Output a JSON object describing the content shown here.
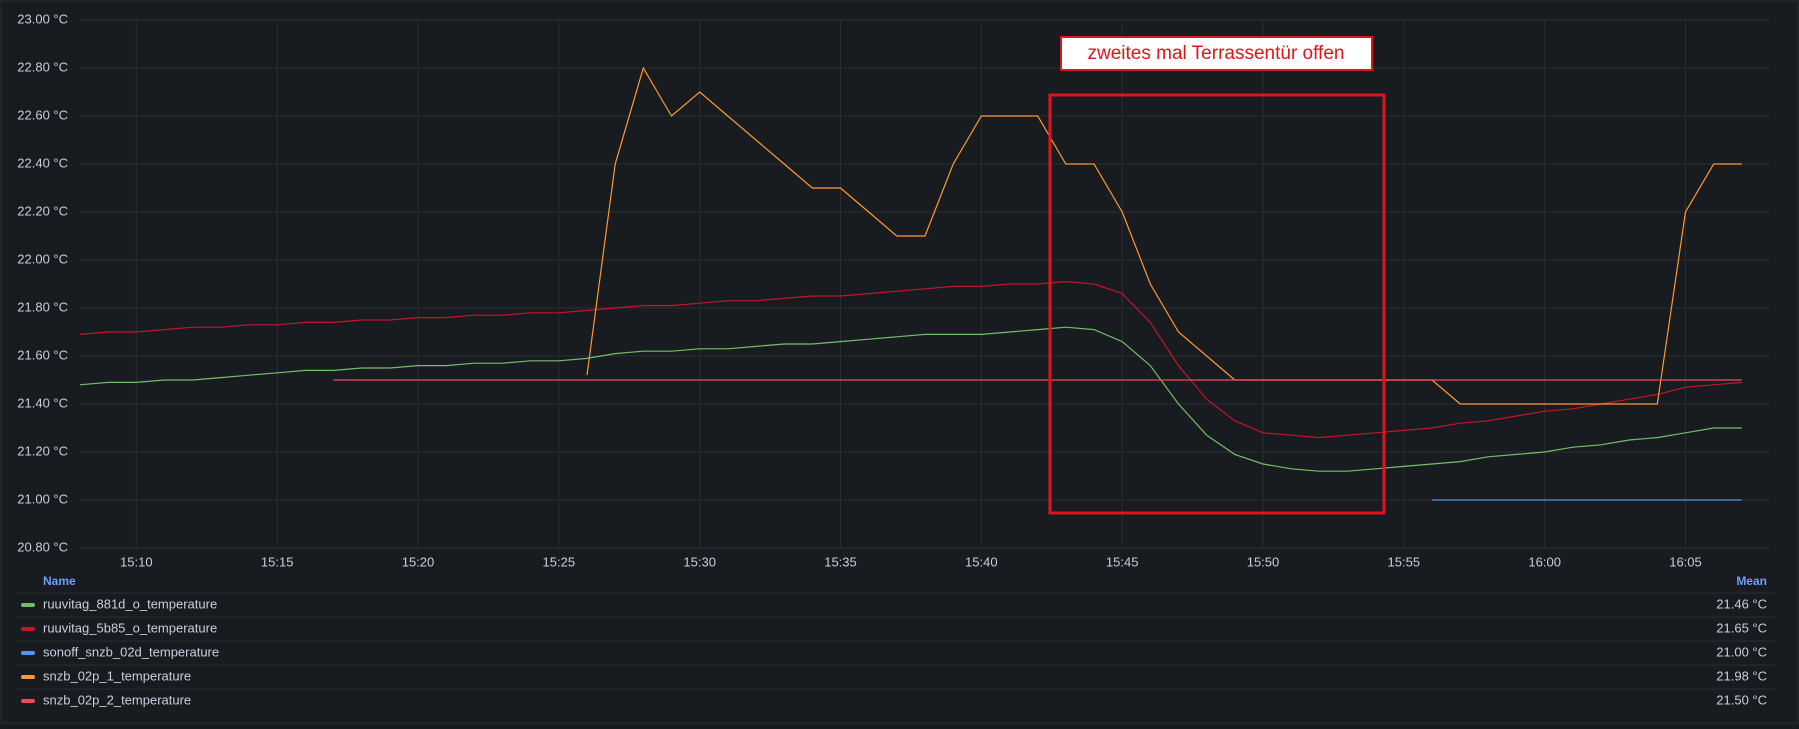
{
  "chart_data": {
    "type": "line",
    "annotation": "zweites mal Terrassentür offen",
    "x": [
      "15:08",
      "15:09",
      "15:10",
      "15:11",
      "15:12",
      "15:13",
      "15:14",
      "15:15",
      "15:16",
      "15:17",
      "15:18",
      "15:19",
      "15:20",
      "15:21",
      "15:22",
      "15:23",
      "15:24",
      "15:25",
      "15:26",
      "15:27",
      "15:28",
      "15:29",
      "15:30",
      "15:31",
      "15:32",
      "15:33",
      "15:34",
      "15:35",
      "15:36",
      "15:37",
      "15:38",
      "15:39",
      "15:40",
      "15:41",
      "15:42",
      "15:43",
      "15:44",
      "15:45",
      "15:46",
      "15:47",
      "15:48",
      "15:49",
      "15:50",
      "15:51",
      "15:52",
      "15:53",
      "15:54",
      "15:55",
      "15:56",
      "15:57",
      "15:58",
      "15:59",
      "16:00",
      "16:01",
      "16:02",
      "16:03",
      "16:04",
      "16:05",
      "16:06",
      "16:07"
    ],
    "xlim": [
      "15:08",
      "16:08"
    ],
    "xticks": [
      "15:10",
      "15:15",
      "15:20",
      "15:25",
      "15:30",
      "15:35",
      "15:40",
      "15:45",
      "15:50",
      "15:55",
      "16:00",
      "16:05"
    ],
    "ylim": [
      20.8,
      23.0
    ],
    "yticks": [
      {
        "value": 20.8,
        "label": "20.80 °C"
      },
      {
        "value": 21.0,
        "label": "21.00 °C"
      },
      {
        "value": 21.2,
        "label": "21.20 °C"
      },
      {
        "value": 21.4,
        "label": "21.40 °C"
      },
      {
        "value": 21.6,
        "label": "21.60 °C"
      },
      {
        "value": 21.8,
        "label": "21.80 °C"
      },
      {
        "value": 22.0,
        "label": "22.00 °C"
      },
      {
        "value": 22.2,
        "label": "22.20 °C"
      },
      {
        "value": 22.4,
        "label": "22.40 °C"
      },
      {
        "value": 22.6,
        "label": "22.60 °C"
      },
      {
        "value": 22.8,
        "label": "22.80 °C"
      },
      {
        "value": 23.0,
        "label": "23.00 °C"
      }
    ],
    "grid": true,
    "legend": {
      "name_header": "Name",
      "mean_header": "Mean"
    },
    "series": [
      {
        "name": "ruuvitag_881d_o_temperature",
        "color": "#73bf69",
        "mean": {
          "value": 21.46,
          "label": "21.46 °C"
        },
        "values": [
          21.48,
          21.49,
          21.49,
          21.5,
          21.5,
          21.51,
          21.52,
          21.53,
          21.54,
          21.54,
          21.55,
          21.55,
          21.56,
          21.56,
          21.57,
          21.57,
          21.58,
          21.58,
          21.59,
          21.61,
          21.62,
          21.62,
          21.63,
          21.63,
          21.64,
          21.65,
          21.65,
          21.66,
          21.67,
          21.68,
          21.69,
          21.69,
          21.69,
          21.7,
          21.71,
          21.72,
          21.71,
          21.66,
          21.56,
          21.4,
          21.27,
          21.19,
          21.15,
          21.13,
          21.12,
          21.12,
          21.13,
          21.14,
          21.15,
          21.16,
          21.18,
          21.19,
          21.2,
          21.22,
          21.23,
          21.25,
          21.26,
          21.28,
          21.3,
          21.3
        ]
      },
      {
        "name": "ruuvitag_5b85_o_temperature",
        "color": "#c4162a",
        "mean": {
          "value": 21.65,
          "label": "21.65 °C"
        },
        "values": [
          21.69,
          21.7,
          21.7,
          21.71,
          21.72,
          21.72,
          21.73,
          21.73,
          21.74,
          21.74,
          21.75,
          21.75,
          21.76,
          21.76,
          21.77,
          21.77,
          21.78,
          21.78,
          21.79,
          21.8,
          21.81,
          21.81,
          21.82,
          21.83,
          21.83,
          21.84,
          21.85,
          21.85,
          21.86,
          21.87,
          21.88,
          21.89,
          21.89,
          21.9,
          21.9,
          21.91,
          21.9,
          21.86,
          21.74,
          21.56,
          21.42,
          21.33,
          21.28,
          21.27,
          21.26,
          21.27,
          21.28,
          21.29,
          21.3,
          21.32,
          21.33,
          21.35,
          21.37,
          21.38,
          21.4,
          21.42,
          21.44,
          21.47,
          21.48,
          21.49
        ]
      },
      {
        "name": "sonoff_snzb_02d_temperature",
        "color": "#5794f2",
        "mean": {
          "value": 21.0,
          "label": "21.00 °C"
        },
        "values": [
          null,
          null,
          null,
          null,
          null,
          null,
          null,
          null,
          null,
          null,
          null,
          null,
          null,
          null,
          null,
          null,
          null,
          null,
          null,
          null,
          null,
          null,
          null,
          null,
          null,
          null,
          null,
          null,
          null,
          null,
          null,
          null,
          null,
          null,
          null,
          null,
          null,
          null,
          null,
          null,
          null,
          null,
          null,
          null,
          null,
          null,
          null,
          null,
          21.0,
          21.0,
          21.0,
          21.0,
          21.0,
          21.0,
          21.0,
          21.0,
          21.0,
          21.0,
          21.0,
          21.0
        ]
      },
      {
        "name": "snzb_02p_1_temperature",
        "color": "#ff9830",
        "mean": {
          "value": 21.98,
          "label": "21.98 °C"
        },
        "values": [
          null,
          null,
          null,
          null,
          null,
          null,
          null,
          null,
          null,
          null,
          null,
          null,
          null,
          null,
          null,
          null,
          null,
          null,
          21.52,
          22.4,
          22.8,
          22.6,
          22.7,
          22.6,
          22.5,
          22.4,
          22.3,
          22.3,
          22.2,
          22.1,
          22.1,
          22.4,
          22.6,
          22.6,
          22.6,
          22.4,
          22.4,
          22.2,
          21.9,
          21.7,
          21.6,
          21.5,
          21.5,
          21.5,
          21.5,
          21.5,
          21.5,
          21.5,
          21.5,
          21.4,
          21.4,
          21.4,
          21.4,
          21.4,
          21.4,
          21.4,
          21.4,
          22.2,
          22.4,
          22.4
        ]
      },
      {
        "name": "snzb_02p_2_temperature",
        "color": "#f2495c",
        "mean": {
          "value": 21.5,
          "label": "21.50 °C"
        },
        "values": [
          null,
          null,
          null,
          null,
          null,
          null,
          null,
          null,
          null,
          21.5,
          21.5,
          21.5,
          21.5,
          21.5,
          21.5,
          21.5,
          21.5,
          21.5,
          21.5,
          21.5,
          21.5,
          21.5,
          21.5,
          21.5,
          21.5,
          21.5,
          21.5,
          21.5,
          21.5,
          21.5,
          21.5,
          21.5,
          21.5,
          21.5,
          21.5,
          21.5,
          21.5,
          21.5,
          21.5,
          21.5,
          21.5,
          21.5,
          21.5,
          21.5,
          21.5,
          21.5,
          21.5,
          21.5,
          21.5,
          21.5,
          21.5,
          21.5,
          21.5,
          21.5,
          21.5,
          21.5,
          21.5,
          21.5,
          21.5,
          21.5
        ]
      }
    ]
  }
}
